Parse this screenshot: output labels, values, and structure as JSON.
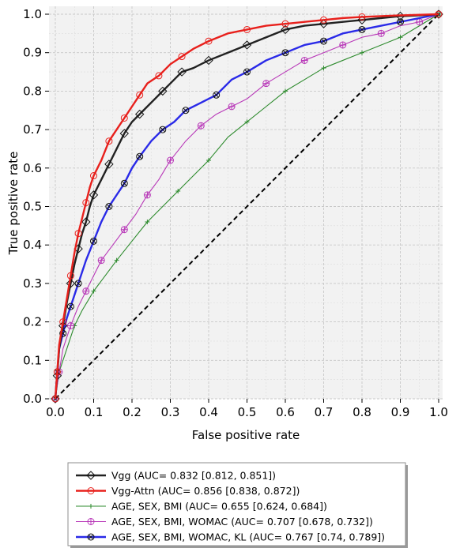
{
  "chart_data": {
    "type": "line",
    "xlabel": "False positive rate",
    "ylabel": "True positive rate",
    "xlim": [
      0,
      1
    ],
    "ylim": [
      0,
      1
    ],
    "x_ticks": [
      "0.0",
      "0.1",
      "0.2",
      "0.3",
      "0.4",
      "0.5",
      "0.6",
      "0.7",
      "0.8",
      "0.9",
      "1.0"
    ],
    "y_ticks": [
      "0.0",
      "0.1",
      "0.2",
      "0.3",
      "0.4",
      "0.5",
      "0.6",
      "0.7",
      "0.8",
      "0.9",
      "1.0"
    ],
    "grid": true,
    "legend_position": "below",
    "diagonal": {
      "x": [
        0,
        1
      ],
      "y": [
        0,
        1
      ],
      "style": "dashed",
      "color": "#000000"
    },
    "series": [
      {
        "name": "Vgg (AUC= 0.832 [0.812, 0.851])",
        "color": "#222222",
        "marker": "diamond",
        "x": [
          0,
          0.005,
          0.01,
          0.02,
          0.03,
          0.04,
          0.05,
          0.06,
          0.07,
          0.08,
          0.09,
          0.1,
          0.12,
          0.14,
          0.16,
          0.18,
          0.2,
          0.22,
          0.25,
          0.28,
          0.3,
          0.33,
          0.36,
          0.4,
          0.45,
          0.5,
          0.55,
          0.6,
          0.65,
          0.7,
          0.75,
          0.8,
          0.85,
          0.9,
          0.95,
          1.0
        ],
        "y": [
          0,
          0.06,
          0.13,
          0.19,
          0.25,
          0.3,
          0.35,
          0.39,
          0.43,
          0.46,
          0.5,
          0.53,
          0.57,
          0.61,
          0.65,
          0.69,
          0.72,
          0.74,
          0.77,
          0.8,
          0.82,
          0.85,
          0.86,
          0.88,
          0.9,
          0.92,
          0.94,
          0.96,
          0.97,
          0.975,
          0.98,
          0.985,
          0.99,
          0.995,
          0.997,
          1.0
        ]
      },
      {
        "name": "Vgg-Attn (AUC= 0.856 [0.838, 0.872])",
        "color": "#e8201c",
        "marker": "circle",
        "x": [
          0,
          0.005,
          0.01,
          0.02,
          0.03,
          0.04,
          0.05,
          0.06,
          0.07,
          0.08,
          0.09,
          0.1,
          0.12,
          0.14,
          0.16,
          0.18,
          0.2,
          0.22,
          0.24,
          0.27,
          0.3,
          0.33,
          0.36,
          0.4,
          0.45,
          0.5,
          0.55,
          0.6,
          0.65,
          0.7,
          0.75,
          0.8,
          0.9,
          1.0
        ],
        "y": [
          0,
          0.07,
          0.14,
          0.2,
          0.26,
          0.32,
          0.38,
          0.43,
          0.47,
          0.51,
          0.55,
          0.58,
          0.62,
          0.67,
          0.7,
          0.73,
          0.76,
          0.79,
          0.82,
          0.84,
          0.87,
          0.89,
          0.91,
          0.93,
          0.95,
          0.96,
          0.97,
          0.975,
          0.98,
          0.985,
          0.99,
          0.993,
          0.997,
          1.0
        ]
      },
      {
        "name": "AGE, SEX, BMI  (AUC= 0.655 [0.624, 0.684])",
        "color": "#2e8b2e",
        "marker": "plus",
        "x": [
          0,
          0.01,
          0.03,
          0.05,
          0.07,
          0.1,
          0.13,
          0.16,
          0.2,
          0.24,
          0.28,
          0.32,
          0.36,
          0.4,
          0.45,
          0.5,
          0.55,
          0.6,
          0.65,
          0.7,
          0.75,
          0.8,
          0.85,
          0.9,
          0.95,
          1.0
        ],
        "y": [
          0,
          0.07,
          0.13,
          0.19,
          0.23,
          0.28,
          0.32,
          0.36,
          0.41,
          0.46,
          0.5,
          0.54,
          0.58,
          0.62,
          0.68,
          0.72,
          0.76,
          0.8,
          0.83,
          0.86,
          0.88,
          0.9,
          0.92,
          0.94,
          0.97,
          1.0
        ]
      },
      {
        "name": "AGE, SEX, BMI, WOMAC (AUC= 0.707 [0.678, 0.732])",
        "color": "#b838b8",
        "marker": "plus-circle",
        "x": [
          0,
          0.01,
          0.02,
          0.04,
          0.06,
          0.08,
          0.1,
          0.12,
          0.15,
          0.18,
          0.21,
          0.24,
          0.27,
          0.3,
          0.34,
          0.38,
          0.42,
          0.46,
          0.5,
          0.55,
          0.6,
          0.65,
          0.7,
          0.75,
          0.8,
          0.85,
          0.9,
          0.95,
          1.0
        ],
        "y": [
          0,
          0.07,
          0.13,
          0.19,
          0.24,
          0.28,
          0.32,
          0.36,
          0.4,
          0.44,
          0.48,
          0.53,
          0.57,
          0.62,
          0.67,
          0.71,
          0.74,
          0.76,
          0.78,
          0.82,
          0.85,
          0.88,
          0.9,
          0.92,
          0.94,
          0.95,
          0.97,
          0.98,
          1.0
        ]
      },
      {
        "name": "AGE, SEX, BMI, WOMAC, KL (AUC= 0.767 [0.74, 0.789])",
        "color": "#2a2ae8",
        "marker": "cross-circle",
        "x": [
          0,
          0.005,
          0.01,
          0.02,
          0.03,
          0.04,
          0.05,
          0.06,
          0.08,
          0.1,
          0.12,
          0.14,
          0.16,
          0.18,
          0.2,
          0.22,
          0.25,
          0.28,
          0.31,
          0.34,
          0.38,
          0.42,
          0.46,
          0.5,
          0.55,
          0.6,
          0.65,
          0.7,
          0.75,
          0.8,
          0.85,
          0.9,
          0.95,
          1.0
        ],
        "y": [
          0,
          0.07,
          0.13,
          0.17,
          0.21,
          0.24,
          0.27,
          0.3,
          0.36,
          0.41,
          0.46,
          0.5,
          0.53,
          0.56,
          0.6,
          0.63,
          0.67,
          0.7,
          0.72,
          0.75,
          0.77,
          0.79,
          0.83,
          0.85,
          0.88,
          0.9,
          0.92,
          0.93,
          0.95,
          0.96,
          0.97,
          0.98,
          0.99,
          1.0
        ]
      }
    ]
  }
}
